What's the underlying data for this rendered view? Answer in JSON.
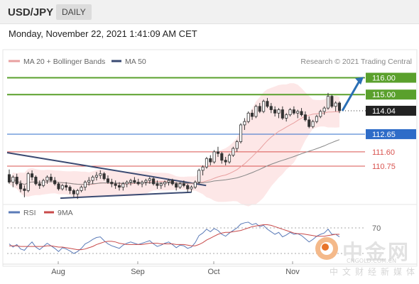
{
  "header": {
    "symbol": "USD/JPY",
    "timeframe": "DAILY"
  },
  "datetime": "Monday, November 22, 2021 1:41:09 AM CET",
  "credit": "Research © 2021 Trading Central",
  "legend": {
    "ma20": "MA 20 + Bollinger Bands",
    "ma50": "MA 50",
    "rsi": "RSI",
    "ma9": "9MA"
  },
  "colors": {
    "green_level": "#5aa02c",
    "blue_level": "#2e6cc8",
    "red_level": "#d9534f",
    "last_price": "#222222",
    "bollinger_fill": "#fde3e3",
    "ma20": "#e8a0a0",
    "ma50": "#888888",
    "trendline": "#3a4a72",
    "candle_up": "#ffffff",
    "candle_down": "#333333",
    "arrow": "#2a6fb5",
    "rsi": "#5b7bb8",
    "rsi_ma": "#c84a4a"
  },
  "chart_data": [
    {
      "type": "candlestick",
      "title": "USD/JPY DAILY",
      "x_tick_labels": [
        "Aug",
        "Sep",
        "Oct",
        "Nov"
      ],
      "levels": [
        {
          "value": 116.0,
          "label": "116.00",
          "kind": "target",
          "color": "#5aa02c"
        },
        {
          "value": 115.0,
          "label": "115.00",
          "kind": "resistance",
          "color": "#5aa02c"
        },
        {
          "value": 114.04,
          "label": "114.04",
          "kind": "last-price",
          "color": "#222222"
        },
        {
          "value": 112.65,
          "label": "112.65",
          "kind": "pivot",
          "color": "#2e6cc8"
        },
        {
          "value": 111.6,
          "label": "111.60",
          "kind": "support",
          "color": "#d9534f"
        },
        {
          "value": 110.75,
          "label": "110.75",
          "kind": "support",
          "color": "#d9534f"
        }
      ],
      "ylim": [
        108.6,
        116.4
      ],
      "candles": [
        [
          110.25,
          110.55,
          109.7,
          109.8
        ],
        [
          109.8,
          110.2,
          109.5,
          110.1
        ],
        [
          110.1,
          110.3,
          109.6,
          109.7
        ],
        [
          109.7,
          109.9,
          109.2,
          109.4
        ],
        [
          109.4,
          109.6,
          108.9,
          109.3
        ],
        [
          109.3,
          110.4,
          109.2,
          110.3
        ],
        [
          110.3,
          110.5,
          109.9,
          110.1
        ],
        [
          110.1,
          110.2,
          109.6,
          109.7
        ],
        [
          109.7,
          109.9,
          109.4,
          109.6
        ],
        [
          109.6,
          110.0,
          109.5,
          109.9
        ],
        [
          109.9,
          110.2,
          109.7,
          110.1
        ],
        [
          110.1,
          110.3,
          109.8,
          109.9
        ],
        [
          109.9,
          110.1,
          109.6,
          109.7
        ],
        [
          109.7,
          109.8,
          109.3,
          109.4
        ],
        [
          109.4,
          109.7,
          109.3,
          109.6
        ],
        [
          109.6,
          109.8,
          109.3,
          109.5
        ],
        [
          109.5,
          109.6,
          109.1,
          109.3
        ],
        [
          109.3,
          109.4,
          108.9,
          109.1
        ],
        [
          109.1,
          109.4,
          108.8,
          109.3
        ],
        [
          109.3,
          109.6,
          109.2,
          109.5
        ],
        [
          109.5,
          109.9,
          109.3,
          109.8
        ],
        [
          109.8,
          110.1,
          109.6,
          109.9
        ],
        [
          109.9,
          110.2,
          109.7,
          110.1
        ],
        [
          110.1,
          110.4,
          109.9,
          110.2
        ],
        [
          110.2,
          110.5,
          110.0,
          110.3
        ],
        [
          110.3,
          110.4,
          109.9,
          110.0
        ],
        [
          110.0,
          110.2,
          109.7,
          109.8
        ],
        [
          109.8,
          110.0,
          109.5,
          109.7
        ],
        [
          109.7,
          109.9,
          109.4,
          109.6
        ],
        [
          109.6,
          109.8,
          109.3,
          109.5
        ],
        [
          109.5,
          109.8,
          109.3,
          109.7
        ],
        [
          109.7,
          109.9,
          109.5,
          109.8
        ],
        [
          109.8,
          110.0,
          109.6,
          109.9
        ],
        [
          109.9,
          110.1,
          109.7,
          109.8
        ],
        [
          109.8,
          110.0,
          109.6,
          109.7
        ],
        [
          109.7,
          109.9,
          109.5,
          109.8
        ],
        [
          109.8,
          110.0,
          109.6,
          109.9
        ],
        [
          109.9,
          110.1,
          109.7,
          110.0
        ],
        [
          110.0,
          110.1,
          109.6,
          109.7
        ],
        [
          109.7,
          109.9,
          109.4,
          109.6
        ],
        [
          109.6,
          109.8,
          109.4,
          109.7
        ],
        [
          109.7,
          109.9,
          109.5,
          109.8
        ],
        [
          109.8,
          110.0,
          109.6,
          109.9
        ],
        [
          109.9,
          110.0,
          109.6,
          109.7
        ],
        [
          109.7,
          109.8,
          109.3,
          109.5
        ],
        [
          109.5,
          109.8,
          109.4,
          109.7
        ],
        [
          109.7,
          109.9,
          109.5,
          109.6
        ],
        [
          109.6,
          109.7,
          109.2,
          109.4
        ],
        [
          109.4,
          109.6,
          109.2,
          109.5
        ],
        [
          109.5,
          109.9,
          109.4,
          109.8
        ],
        [
          109.8,
          110.6,
          109.7,
          110.5
        ],
        [
          110.5,
          110.8,
          110.2,
          110.7
        ],
        [
          110.7,
          111.3,
          110.6,
          111.2
        ],
        [
          111.2,
          111.4,
          110.8,
          111.0
        ],
        [
          111.0,
          111.7,
          110.9,
          111.6
        ],
        [
          111.6,
          111.9,
          111.3,
          111.5
        ],
        [
          111.5,
          111.6,
          110.9,
          111.1
        ],
        [
          111.1,
          111.3,
          110.8,
          111.0
        ],
        [
          111.0,
          111.5,
          110.9,
          111.4
        ],
        [
          111.4,
          111.9,
          111.3,
          111.8
        ],
        [
          111.8,
          112.3,
          111.6,
          112.2
        ],
        [
          112.2,
          113.3,
          112.1,
          113.2
        ],
        [
          113.2,
          113.6,
          112.9,
          113.4
        ],
        [
          113.4,
          114.0,
          113.3,
          113.9
        ],
        [
          113.9,
          114.1,
          113.5,
          113.7
        ],
        [
          113.7,
          114.4,
          113.6,
          114.3
        ],
        [
          114.3,
          114.5,
          113.9,
          114.0
        ],
        [
          114.0,
          114.7,
          113.9,
          114.6
        ],
        [
          114.6,
          114.8,
          114.2,
          114.3
        ],
        [
          114.3,
          114.5,
          113.9,
          114.1
        ],
        [
          114.1,
          114.3,
          113.7,
          113.9
        ],
        [
          113.9,
          114.2,
          113.6,
          114.1
        ],
        [
          114.1,
          114.3,
          113.5,
          113.6
        ],
        [
          113.6,
          113.9,
          113.4,
          113.8
        ],
        [
          113.8,
          114.2,
          113.7,
          114.1
        ],
        [
          114.1,
          114.3,
          113.8,
          113.9
        ],
        [
          113.9,
          114.1,
          113.6,
          114.0
        ],
        [
          114.0,
          114.2,
          113.7,
          113.8
        ],
        [
          113.8,
          114.0,
          113.4,
          113.5
        ],
        [
          113.5,
          113.7,
          113.0,
          113.1
        ],
        [
          113.1,
          113.5,
          113.0,
          113.4
        ],
        [
          113.4,
          113.8,
          113.3,
          113.7
        ],
        [
          113.7,
          114.1,
          113.6,
          114.0
        ],
        [
          114.0,
          114.3,
          113.8,
          114.2
        ],
        [
          114.2,
          115.1,
          114.1,
          114.9
        ],
        [
          114.9,
          115.0,
          114.2,
          114.3
        ],
        [
          114.3,
          114.6,
          114.0,
          114.5
        ],
        [
          114.5,
          114.6,
          113.9,
          114.04
        ]
      ]
    },
    {
      "type": "line",
      "title": "RSI",
      "y_tick_labels": [
        "70"
      ],
      "ylim": [
        20,
        80
      ],
      "series": [
        {
          "name": "RSI",
          "values": [
            45,
            40,
            44,
            37,
            35,
            42,
            48,
            40,
            36,
            41,
            46,
            42,
            38,
            33,
            39,
            37,
            34,
            30,
            33,
            38,
            45,
            48,
            52,
            55,
            56,
            50,
            45,
            42,
            40,
            38,
            43,
            46,
            48,
            46,
            44,
            46,
            48,
            50,
            45,
            41,
            43,
            46,
            48,
            44,
            39,
            43,
            42,
            38,
            40,
            47,
            58,
            62,
            68,
            64,
            69,
            66,
            60,
            57,
            62,
            66,
            70,
            76,
            78,
            79,
            75,
            77,
            72,
            74,
            68,
            64,
            60,
            63,
            56,
            59,
            63,
            60,
            61,
            58,
            53,
            48,
            52,
            57,
            60,
            62,
            68,
            60,
            60,
            56
          ]
        },
        {
          "name": "9MA",
          "values": [
            42,
            42,
            42,
            41,
            41,
            41,
            41,
            41,
            41,
            41,
            42,
            42,
            41,
            40,
            40,
            39,
            38,
            37,
            36,
            36,
            37,
            39,
            41,
            44,
            46,
            48,
            49,
            49,
            48,
            46,
            45,
            44,
            44,
            44,
            44,
            44,
            45,
            46,
            46,
            46,
            45,
            45,
            45,
            45,
            44,
            44,
            44,
            43,
            42,
            42,
            44,
            47,
            51,
            54,
            57,
            60,
            62,
            63,
            63,
            64,
            65,
            66,
            68,
            70,
            72,
            73,
            74,
            75,
            75,
            74,
            72,
            70,
            68,
            66,
            64,
            62,
            61,
            61,
            60,
            59,
            58,
            57,
            57,
            57,
            58,
            59,
            60,
            60
          ]
        }
      ]
    }
  ]
}
